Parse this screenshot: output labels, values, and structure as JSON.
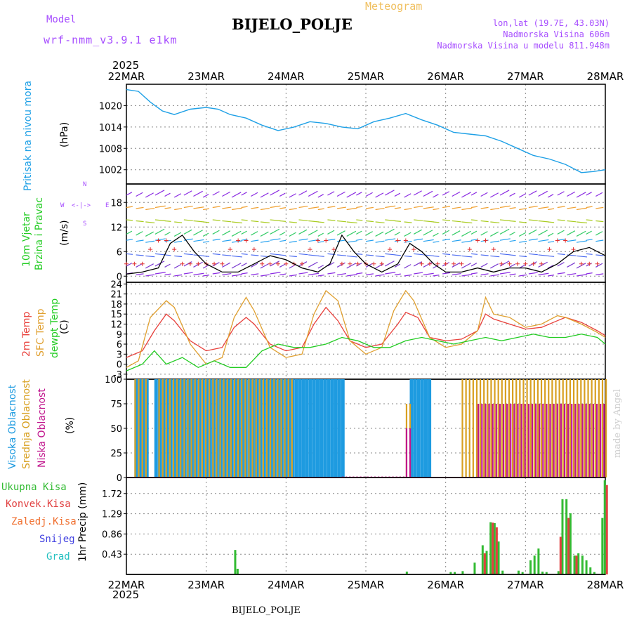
{
  "header": {
    "model_label": "Model",
    "model_name": "wrf-nmm_v3.9.1  e1km",
    "station": "BIJELO_POLJE",
    "product": "Meteogram",
    "lonlat": "lon,lat (19.7E, 43.03N)",
    "elevation": "Nadmorska Visina 606m",
    "model_elevation": "Nadmorska Visina u modelu 811.948m"
  },
  "time_axis": {
    "year": "2025",
    "ticks": [
      "22MAR",
      "23MAR",
      "24MAR",
      "25MAR",
      "26MAR",
      "27MAR",
      "28MAR"
    ]
  },
  "footer": {
    "station": "BIJELO_POLJE",
    "credit": "made by Angel"
  },
  "panel_labels": {
    "pressure": "Pritisak na nivou mora",
    "pressure_unit": "(hPa)",
    "wind_speed": "10m Vjetar",
    "wind_dir": "Brzina i Pravac",
    "wind_unit": "(m/s)",
    "temp_2m": "2m Temp",
    "temp_sfc": "SFC Temp",
    "temp_dewpt": "dewpt Temp",
    "temp_unit": "(C)",
    "cloud_high": "Visoka Oblacnost",
    "cloud_mid": "Srednja Oblacnost",
    "cloud_low": "Niska Oblacnost",
    "cloud_unit": "(%)",
    "precip_unit": "1hr Precip (mm)",
    "precip_total": "Ukupna  Kisa",
    "precip_conv": "Konvek.Kisa",
    "precip_frz": "Zaledj.Kisa",
    "precip_snow": "Snijeg",
    "precip_hail": "Grad",
    "compass_n": "N",
    "compass_s": "S",
    "compass_w": "W",
    "compass_e": "E"
  },
  "colors": {
    "pressure": "#1ea0e6",
    "temp_2m": "#e8413c",
    "temp_sfc": "#e0a030",
    "dewpt": "#22cc22",
    "cloud_high": "#1e9be0",
    "cloud_mid": "#d8a020",
    "cloud_low": "#c0148c",
    "precip_total": "#33bb33",
    "precip_conv": "#e04040",
    "precip_frz": "#f07030",
    "precip_snow": "#4040e0",
    "precip_hail": "#22c0c0",
    "purple": "#a64dff"
  },
  "chart_data": [
    {
      "type": "line",
      "panel": "pressure",
      "x_unit": "days since 22MAR 00UTC",
      "ylim": [
        998,
        1026
      ],
      "yticks": [
        1002,
        1008,
        1014,
        1020
      ],
      "x": [
        0,
        0.15,
        0.3,
        0.45,
        0.6,
        0.8,
        1.0,
        1.15,
        1.3,
        1.5,
        1.7,
        1.9,
        2.1,
        2.3,
        2.5,
        2.7,
        2.9,
        3.1,
        3.3,
        3.5,
        3.7,
        3.9,
        4.1,
        4.3,
        4.5,
        4.7,
        4.9,
        5.1,
        5.3,
        5.5,
        5.7,
        5.85,
        6.0
      ],
      "y": [
        1024.5,
        1024,
        1021,
        1018.5,
        1017.5,
        1019,
        1019.5,
        1019,
        1017.5,
        1016.5,
        1014.5,
        1013,
        1014,
        1015.5,
        1015,
        1014,
        1013.5,
        1015.5,
        1016.5,
        1017.8,
        1016,
        1014.5,
        1012.5,
        1012,
        1011.5,
        1010,
        1008,
        1006,
        1005,
        1003.5,
        1001.2,
        1001.5,
        1002
      ]
    },
    {
      "type": "line",
      "panel": "wind",
      "ylim": [
        -1.5,
        22.5
      ],
      "yticks": [
        0,
        6,
        12,
        18
      ],
      "x": [
        0,
        0.2,
        0.4,
        0.55,
        0.7,
        0.85,
        1.0,
        1.2,
        1.4,
        1.6,
        1.8,
        2.0,
        2.2,
        2.4,
        2.55,
        2.7,
        2.85,
        3.0,
        3.2,
        3.4,
        3.55,
        3.7,
        3.85,
        4.0,
        4.2,
        4.4,
        4.6,
        4.8,
        5.0,
        5.2,
        5.4,
        5.6,
        5.8,
        6.0
      ],
      "y": [
        0.5,
        1,
        2,
        8,
        10,
        6,
        3,
        1,
        1,
        3,
        5,
        4,
        2,
        1,
        3,
        10,
        6,
        3,
        1,
        3,
        8,
        6,
        3,
        1,
        1,
        2,
        1,
        2,
        2,
        1,
        3,
        6,
        7,
        5
      ],
      "name": "wind-speed"
    },
    {
      "type": "line",
      "panel": "temperature",
      "ylim": [
        -4.5,
        24.5
      ],
      "yticks": [
        -3,
        0,
        3,
        6,
        9,
        12,
        15,
        18,
        21,
        24
      ],
      "series": [
        {
          "name": "2m Temp",
          "x": [
            0,
            0.2,
            0.35,
            0.5,
            0.6,
            0.8,
            1.0,
            1.2,
            1.35,
            1.5,
            1.6,
            1.8,
            2.0,
            2.2,
            2.35,
            2.5,
            2.65,
            2.8,
            3.0,
            3.2,
            3.4,
            3.5,
            3.65,
            3.8,
            4.0,
            4.2,
            4.4,
            4.5,
            4.6,
            4.8,
            5.0,
            5.2,
            5.4,
            5.5,
            5.7,
            5.9,
            6.0
          ],
          "y": [
            2,
            4,
            10,
            15,
            13,
            7,
            4,
            5,
            11,
            14,
            12,
            6,
            4,
            5,
            12,
            17,
            13,
            7,
            5,
            6,
            12,
            15.5,
            14,
            8,
            7,
            7.5,
            10,
            15,
            13.5,
            12,
            10.5,
            11,
            13,
            14,
            12.5,
            10,
            8.5
          ]
        },
        {
          "name": "SFC Temp",
          "x": [
            0,
            0.15,
            0.3,
            0.5,
            0.6,
            0.8,
            1.0,
            1.2,
            1.35,
            1.5,
            1.6,
            1.8,
            2.0,
            2.2,
            2.35,
            2.5,
            2.65,
            2.8,
            3.0,
            3.2,
            3.35,
            3.5,
            3.6,
            3.8,
            4.0,
            4.2,
            4.4,
            4.5,
            4.6,
            4.8,
            5.0,
            5.2,
            5.4,
            5.5,
            5.7,
            5.9,
            6.0
          ],
          "y": [
            -1,
            1,
            14,
            19,
            17,
            6,
            0,
            2,
            14,
            20,
            16,
            5,
            2,
            3,
            15,
            22,
            19,
            7,
            3,
            5,
            16,
            22,
            19,
            8,
            5,
            6,
            10,
            20,
            15,
            14,
            11,
            12,
            14.5,
            14,
            12,
            9.5,
            8
          ]
        },
        {
          "name": "dewpt Temp",
          "x": [
            0,
            0.2,
            0.35,
            0.5,
            0.7,
            0.9,
            1.1,
            1.3,
            1.5,
            1.7,
            1.9,
            2.1,
            2.3,
            2.5,
            2.7,
            2.9,
            3.1,
            3.3,
            3.5,
            3.7,
            3.9,
            4.1,
            4.3,
            4.5,
            4.7,
            4.9,
            5.1,
            5.3,
            5.5,
            5.7,
            5.9,
            6.0
          ],
          "y": [
            -2,
            0,
            4,
            0,
            2,
            -1,
            1,
            -1,
            -1,
            4,
            6,
            5,
            5,
            6,
            8,
            7,
            5,
            5,
            7,
            8,
            7,
            6,
            7,
            8,
            7,
            8,
            9,
            8,
            8,
            9,
            8,
            6
          ]
        }
      ]
    },
    {
      "type": "bar",
      "panel": "clouds",
      "ylim": [
        0,
        100
      ],
      "yticks": [
        0,
        25,
        50,
        75,
        100
      ],
      "series": [
        {
          "name": "Visoka Oblacnost",
          "segments": [
            [
              0.1,
              0.25
            ],
            [
              0.35,
              2.7
            ],
            [
              3.55,
              3.8
            ]
          ],
          "values": [
            100,
            100,
            100
          ]
        },
        {
          "name": "Srednja Oblacnost",
          "segments": [
            [
              0.1,
              0.25
            ],
            [
              0.4,
              2.1
            ],
            [
              3.5,
              3.55
            ],
            [
              4.2,
              6.0
            ]
          ],
          "values": [
            100,
            100,
            75,
            100
          ]
        },
        {
          "name": "Niska Oblacnost",
          "segments": [
            [
              2.7,
              3.5
            ],
            [
              3.5,
              3.55
            ],
            [
              4.4,
              6.0
            ]
          ],
          "values": [
            1,
            50,
            75
          ]
        }
      ]
    },
    {
      "type": "bar",
      "panel": "precip",
      "ylim": [
        0,
        2.06
      ],
      "yticks": [
        0.43,
        0.86,
        1.29,
        1.72
      ],
      "series": [
        {
          "name": "Ukupna  Kisa",
          "x": [
            1.35,
            1.38,
            3.5,
            4.05,
            4.1,
            4.2,
            4.35,
            4.45,
            4.5,
            4.55,
            4.6,
            4.65,
            4.7,
            4.9,
            4.95,
            5.05,
            5.1,
            5.15,
            5.2,
            5.25,
            5.4,
            5.45,
            5.5,
            5.55,
            5.6,
            5.65,
            5.7,
            5.75,
            5.8,
            5.85,
            5.95,
            5.98,
            6.0
          ],
          "values": [
            0.52,
            0.12,
            0.06,
            0.05,
            0.05,
            0.07,
            0.25,
            0.62,
            0.5,
            1.11,
            1.09,
            0.7,
            0.08,
            0.08,
            0.05,
            0.3,
            0.4,
            0.55,
            0.06,
            0.05,
            0.07,
            1.6,
            1.6,
            1.3,
            0.4,
            0.45,
            0.4,
            0.3,
            0.15,
            0.05,
            1.2,
            2.0,
            0.6
          ]
        },
        {
          "name": "Konvek.Kisa",
          "x": [
            4.45,
            4.55,
            4.6,
            5.4,
            5.5,
            5.6,
            5.98
          ],
          "values": [
            0.45,
            1.1,
            1.0,
            0.8,
            1.2,
            0.4,
            1.9
          ]
        }
      ]
    }
  ]
}
